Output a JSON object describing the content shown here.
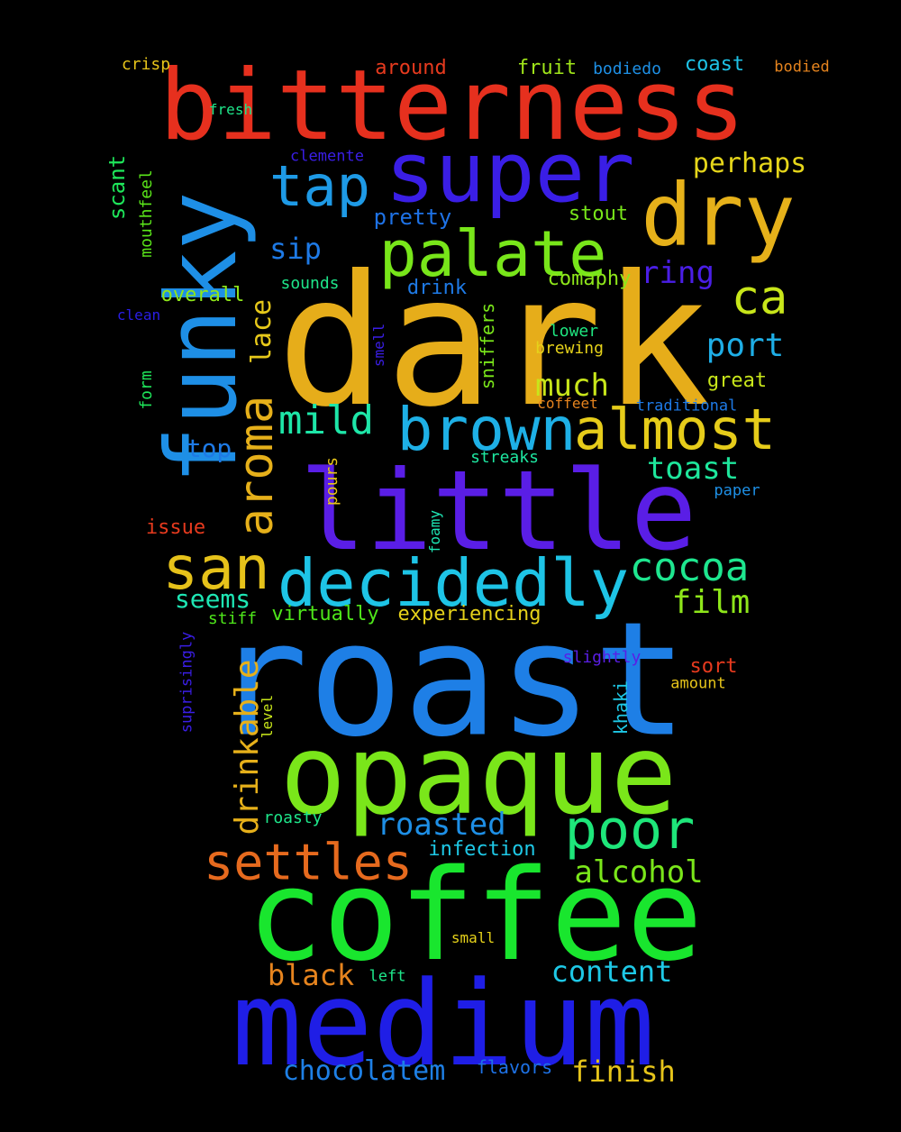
{
  "background": "#000000",
  "words": [
    {
      "text": "dark",
      "color": "#e6ad1a"
    },
    {
      "text": "roast",
      "color": "#1e7fe6"
    },
    {
      "text": "bitterness",
      "color": "#e6301e"
    },
    {
      "text": "coffee",
      "color": "#19e62e"
    },
    {
      "text": "medium",
      "color": "#1f1ee6"
    },
    {
      "text": "little",
      "color": "#5a1ee6"
    },
    {
      "text": "opaque",
      "color": "#7ae61a"
    },
    {
      "text": "funky",
      "color": "#1e8fe6"
    },
    {
      "text": "super",
      "color": "#3a1ee6"
    },
    {
      "text": "dry",
      "color": "#e6b11a"
    },
    {
      "text": "decidedly",
      "color": "#1ec4e6"
    },
    {
      "text": "palate",
      "color": "#78e61a"
    },
    {
      "text": "brown",
      "color": "#1eb0e6"
    },
    {
      "text": "almost",
      "color": "#e6cc1a"
    },
    {
      "text": "tap",
      "color": "#1e9ae6"
    },
    {
      "text": "san",
      "color": "#e6c21a"
    },
    {
      "text": "aroma",
      "color": "#e6b01a"
    },
    {
      "text": "poor",
      "color": "#1ee67a"
    },
    {
      "text": "settles",
      "color": "#e66a1e"
    },
    {
      "text": "ca",
      "color": "#c8e61a"
    },
    {
      "text": "cocoa",
      "color": "#1ee68f"
    },
    {
      "text": "mild",
      "color": "#1ee6a8"
    },
    {
      "text": "drinkable",
      "color": "#e6b01a"
    },
    {
      "text": "ring",
      "color": "#4a1ee6"
    },
    {
      "text": "port",
      "color": "#1eaee6"
    },
    {
      "text": "toast",
      "color": "#1ee69c"
    },
    {
      "text": "film",
      "color": "#8ee61a"
    },
    {
      "text": "alcohol",
      "color": "#7ae61a"
    },
    {
      "text": "roasted",
      "color": "#1e8fe6"
    },
    {
      "text": "content",
      "color": "#1ec8e6"
    },
    {
      "text": "chocolatem",
      "color": "#1e80e6"
    },
    {
      "text": "finish",
      "color": "#e6c41a"
    },
    {
      "text": "black",
      "color": "#e6841e"
    },
    {
      "text": "much",
      "color": "#c8e61a"
    },
    {
      "text": "perhaps",
      "color": "#e6d61a"
    },
    {
      "text": "sip",
      "color": "#1e7ae6"
    },
    {
      "text": "lace",
      "color": "#e6c81a"
    },
    {
      "text": "seems",
      "color": "#1ee6b4"
    },
    {
      "text": "top",
      "color": "#1e7ae6"
    },
    {
      "text": "pretty",
      "color": "#1e72e6"
    },
    {
      "text": "overall",
      "color": "#8ee61a"
    },
    {
      "text": "comaphy",
      "color": "#8ee61a"
    },
    {
      "text": "stout",
      "color": "#78e61a"
    },
    {
      "text": "drink",
      "color": "#1e7ae6"
    },
    {
      "text": "scant",
      "color": "#1ee65a"
    },
    {
      "text": "great",
      "color": "#c8e61a"
    },
    {
      "text": "experiencing",
      "color": "#e6d21a"
    },
    {
      "text": "virtually",
      "color": "#4ee61a"
    },
    {
      "text": "infection",
      "color": "#1ec8e6"
    },
    {
      "text": "fruit",
      "color": "#a0e61a"
    },
    {
      "text": "coast",
      "color": "#1ec2e6"
    },
    {
      "text": "around",
      "color": "#e63a1e"
    },
    {
      "text": "crisp",
      "color": "#e6c41a"
    },
    {
      "text": "bodiedo",
      "color": "#1e90e6"
    },
    {
      "text": "bodied",
      "color": "#e6841e"
    },
    {
      "text": "fresh",
      "color": "#1ee68a"
    },
    {
      "text": "clemente",
      "color": "#3a1ee6"
    },
    {
      "text": "mouthfeel",
      "color": "#5ae61a"
    },
    {
      "text": "clean",
      "color": "#2a1ee6"
    },
    {
      "text": "sounds",
      "color": "#1ee68a"
    },
    {
      "text": "smell",
      "color": "#3a1ee6"
    },
    {
      "text": "sniffers",
      "color": "#7ae61a"
    },
    {
      "text": "lower",
      "color": "#1ee680"
    },
    {
      "text": "brewing",
      "color": "#e6d21a"
    },
    {
      "text": "coffeet",
      "color": "#e6841e"
    },
    {
      "text": "traditional",
      "color": "#1e7ae6"
    },
    {
      "text": "form",
      "color": "#1ee65a"
    },
    {
      "text": "streaks",
      "color": "#1ee6a0"
    },
    {
      "text": "pours",
      "color": "#e6c41a"
    },
    {
      "text": "paper",
      "color": "#1e90e6"
    },
    {
      "text": "issue",
      "color": "#e63a1e"
    },
    {
      "text": "foamy",
      "color": "#1ee6b4"
    },
    {
      "text": "stiff",
      "color": "#4ee61a"
    },
    {
      "text": "suprisingly",
      "color": "#3a1ee6"
    },
    {
      "text": "level",
      "color": "#c8e61a"
    },
    {
      "text": "slightly",
      "color": "#5a1ee6"
    },
    {
      "text": "sort",
      "color": "#e63a1e"
    },
    {
      "text": "amount",
      "color": "#e6c41a"
    },
    {
      "text": "khaki",
      "color": "#1ec8e6"
    },
    {
      "text": "roasty",
      "color": "#1ee68a"
    },
    {
      "text": "small",
      "color": "#e6d21a"
    },
    {
      "text": "left",
      "color": "#1ee68a"
    },
    {
      "text": "flavors",
      "color": "#1e72e6"
    }
  ]
}
